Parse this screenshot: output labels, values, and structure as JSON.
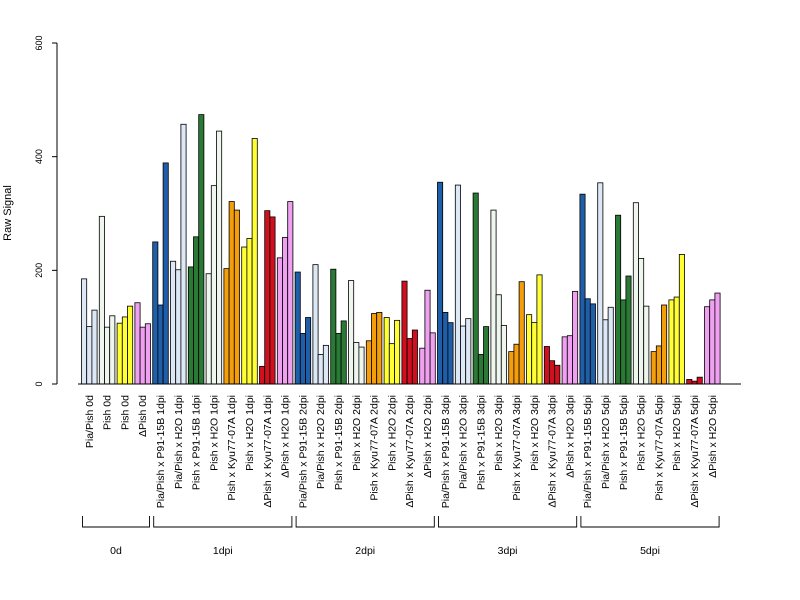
{
  "chart_data": {
    "type": "bar",
    "ylabel": "Raw Signal",
    "ylim": [
      0,
      600
    ],
    "yticks": [
      0,
      200,
      400,
      600
    ],
    "grid": false,
    "colors": {
      "Pia/Pish": "#dce8f5",
      "Pish": "#eef6ee",
      "Pish_yellow": "#ffff33",
      "ΔPish": "#f0a0f0",
      "P91-15B_blue": "#1f5ea8",
      "P91-15B_green": "#2a7a35",
      "Kyu77-07A": "#f59e0c",
      "Kyu77-07A_red": "#d0101e",
      "ΔPish_x_H2O": "#f0a0f0"
    },
    "groups": [
      {
        "label": "0d"
      },
      {
        "label": "1dpi"
      },
      {
        "label": "2dpi"
      },
      {
        "label": "3dpi"
      },
      {
        "label": "5dpi"
      }
    ],
    "categories": [
      {
        "label": "Pia/Pish 0d",
        "group": 0,
        "color": "#dce8f5",
        "values": [
          185,
          101,
          130
        ]
      },
      {
        "label": "Pish 0d",
        "group": 0,
        "color": "#eef6ee",
        "values": [
          295,
          100,
          120
        ]
      },
      {
        "label": "Pish 0d",
        "group": 0,
        "color": "#ffff33",
        "values": [
          107,
          118,
          137
        ]
      },
      {
        "label": "ΔPish 0d",
        "group": 0,
        "color": "#f0a0f0",
        "values": [
          143,
          100,
          106
        ]
      },
      {
        "label": "Pia/Pish x P91-15B 1dpi",
        "group": 1,
        "color": "#1f5ea8",
        "values": [
          250,
          139,
          389
        ]
      },
      {
        "label": "Pia/Pish x H2O 1dpi",
        "group": 1,
        "color": "#dce8f5",
        "values": [
          216,
          201,
          457
        ]
      },
      {
        "label": "Pish x P91-15B 1dpi",
        "group": 1,
        "color": "#2a7a35",
        "values": [
          206,
          259,
          474
        ]
      },
      {
        "label": "Pish x H2O 1dpi",
        "group": 1,
        "color": "#eef6ee",
        "values": [
          194,
          349,
          445
        ]
      },
      {
        "label": "Pish x Kyu77-07A 1dpi",
        "group": 1,
        "color": "#f59e0c",
        "values": [
          203,
          321,
          306
        ]
      },
      {
        "label": "Pish x H2O 1dpi",
        "group": 1,
        "color": "#ffff33",
        "values": [
          241,
          256,
          432
        ]
      },
      {
        "label": "ΔPish x Kyu77-07A 1dpi",
        "group": 1,
        "color": "#d0101e",
        "values": [
          31,
          305,
          294
        ]
      },
      {
        "label": "ΔPish x H2O 1dpi",
        "group": 1,
        "color": "#f0a0f0",
        "values": [
          222,
          258,
          321
        ]
      },
      {
        "label": "Pia/Pish x P91-15B 2dpi",
        "group": 2,
        "color": "#1f5ea8",
        "values": [
          197,
          89,
          117
        ]
      },
      {
        "label": "Pia/Pish x H2O 2dpi",
        "group": 2,
        "color": "#dce8f5",
        "values": [
          210,
          52,
          68
        ]
      },
      {
        "label": "Pish x P91-15B 2dpi",
        "group": 2,
        "color": "#2a7a35",
        "values": [
          202,
          89,
          111
        ]
      },
      {
        "label": "Pish x H2O 2dpi",
        "group": 2,
        "color": "#eef6ee",
        "values": [
          182,
          73,
          65
        ]
      },
      {
        "label": "Pish x Kyu77-07A 2dpi",
        "group": 2,
        "color": "#f59e0c",
        "values": [
          76,
          124,
          126
        ]
      },
      {
        "label": "Pish x H2O 2dpi",
        "group": 2,
        "color": "#ffff33",
        "values": [
          117,
          71,
          112
        ]
      },
      {
        "label": "ΔPish x Kyu77-07A 2dpi",
        "group": 2,
        "color": "#d0101e",
        "values": [
          181,
          80,
          95
        ]
      },
      {
        "label": "ΔPish x H2O 2dpi",
        "group": 2,
        "color": "#f0a0f0",
        "values": [
          63,
          165,
          90
        ]
      },
      {
        "label": "Pia/Pish x P91-15B 3dpi",
        "group": 3,
        "color": "#1f5ea8",
        "values": [
          355,
          126,
          108
        ]
      },
      {
        "label": "Pia/Pish x H2O 3dpi",
        "group": 3,
        "color": "#dce8f5",
        "values": [
          350,
          102,
          115
        ]
      },
      {
        "label": "Pish x P91-15B 3dpi",
        "group": 3,
        "color": "#2a7a35",
        "values": [
          336,
          52,
          101
        ]
      },
      {
        "label": "Pish x H2O 3dpi",
        "group": 3,
        "color": "#eef6ee",
        "values": [
          306,
          157,
          103
        ]
      },
      {
        "label": "Pish x Kyu77-07A 3dpi",
        "group": 3,
        "color": "#f59e0c",
        "values": [
          57,
          70,
          180
        ]
      },
      {
        "label": "Pish x H2O 3dpi",
        "group": 3,
        "color": "#ffff33",
        "values": [
          122,
          108,
          192
        ]
      },
      {
        "label": "ΔPish x Kyu77-07A 3dpi",
        "group": 3,
        "color": "#d0101e",
        "values": [
          66,
          41,
          33
        ]
      },
      {
        "label": "ΔPish x H2O 3dpi",
        "group": 3,
        "color": "#f0a0f0",
        "values": [
          83,
          85,
          163
        ]
      },
      {
        "label": "Pia/Pish x P91-15B 5dpi",
        "group": 4,
        "color": "#1f5ea8",
        "values": [
          334,
          150,
          141
        ]
      },
      {
        "label": "Pia/Pish x H2O 5dpi",
        "group": 4,
        "color": "#dce8f5",
        "values": [
          354,
          113,
          135
        ]
      },
      {
        "label": "Pish x P91-15B 5dpi",
        "group": 4,
        "color": "#2a7a35",
        "values": [
          297,
          148,
          190
        ]
      },
      {
        "label": "Pish x H2O 5dpi",
        "group": 4,
        "color": "#eef6ee",
        "values": [
          319,
          221,
          137
        ]
      },
      {
        "label": "Pish x Kyu77-07A 5dpi",
        "group": 4,
        "color": "#f59e0c",
        "values": [
          57,
          67,
          139
        ]
      },
      {
        "label": "Pish x H2O 5dpi",
        "group": 4,
        "color": "#ffff33",
        "values": [
          148,
          153,
          228
        ]
      },
      {
        "label": "ΔPish x Kyu77-07A 5dpi",
        "group": 4,
        "color": "#d0101e",
        "values": [
          8,
          5,
          12
        ]
      },
      {
        "label": "ΔPish x H2O 5dpi",
        "group": 4,
        "color": "#f0a0f0",
        "values": [
          136,
          148,
          160
        ]
      }
    ]
  }
}
